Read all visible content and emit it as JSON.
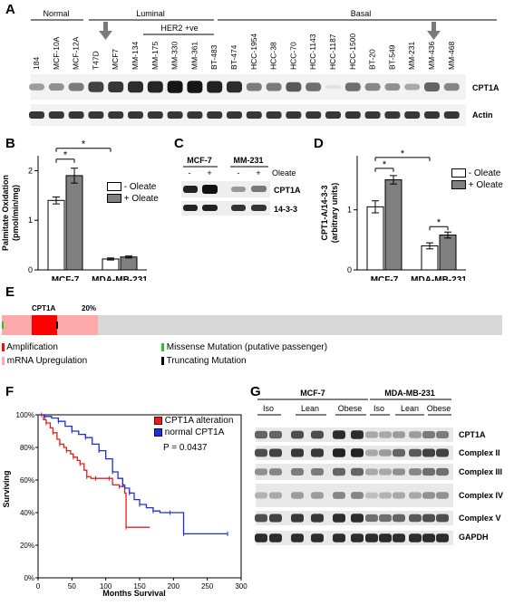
{
  "panelA": {
    "label": "A",
    "groups": [
      "Normal",
      "Luminal",
      "HER2 +ve",
      "Basal"
    ],
    "lanes": [
      "184",
      "MCF-10A",
      "MCF-12A",
      "T47D",
      "MCF7",
      "MM-134",
      "MM-175",
      "MM-330",
      "MM-361",
      "BT-483",
      "BT-474",
      "HCC-1954",
      "HCC-38",
      "HCC-70",
      "HCC-1143",
      "HCC-1187",
      "HCC-1500",
      "BT-20",
      "BT-549",
      "MM-231",
      "MM-436",
      "MM-468"
    ],
    "cpt1a_intensity": [
      0.35,
      0.4,
      0.5,
      0.75,
      0.8,
      0.85,
      0.88,
      0.95,
      0.95,
      0.9,
      0.85,
      0.5,
      0.5,
      0.65,
      0.55,
      0.05,
      0.55,
      0.45,
      0.4,
      0.3,
      0.6,
      0.45
    ],
    "blot_labels": [
      "CPT1A",
      "Actin"
    ]
  },
  "panelB": {
    "label": "B",
    "ylabel": "Palmitate Oxidation\n(pmol/min/mg)",
    "legend": [
      "- Oleate",
      "+ Oleate"
    ],
    "sig": "*",
    "chart_data": {
      "type": "bar",
      "categories": [
        "MCF-7",
        "MDA-MB-231"
      ],
      "series": [
        {
          "name": "- Oleate",
          "values": [
            1.4,
            0.22
          ],
          "errors": [
            0.07,
            0.02
          ],
          "color": "#ffffff"
        },
        {
          "name": "+ Oleate",
          "values": [
            1.9,
            0.26
          ],
          "errors": [
            0.15,
            0.02
          ],
          "color": "#808080"
        }
      ],
      "ylim": [
        0,
        2.3
      ],
      "yticks": [
        "0",
        "1",
        "2"
      ]
    }
  },
  "panelC": {
    "label": "C",
    "cells": [
      "MCF-7",
      "MM-231"
    ],
    "oleate_label": "Oleate",
    "oleate_marks": [
      "-",
      "+",
      "-",
      "+"
    ],
    "blot_labels": [
      "CPT1A",
      "14-3-3"
    ]
  },
  "panelD": {
    "label": "D",
    "ylabel": "CPT1-A/14-3-3\n(arbitrary units)",
    "legend": [
      "- Oleate",
      "+ Oleate"
    ],
    "sig": "*",
    "chart_data": {
      "type": "bar",
      "categories": [
        "MCF-7",
        "MDA-MB-231"
      ],
      "series": [
        {
          "name": "- Oleate",
          "values": [
            1.05,
            0.4
          ],
          "errors": [
            0.1,
            0.05
          ],
          "color": "#ffffff"
        },
        {
          "name": "+ Oleate",
          "values": [
            1.5,
            0.58
          ],
          "errors": [
            0.07,
            0.05
          ],
          "color": "#808080"
        }
      ],
      "ylim": [
        0,
        1.9
      ],
      "yticks": [
        "0",
        "1"
      ]
    }
  },
  "panelE": {
    "label": "E",
    "gene": "CPT1A",
    "percent": "20%",
    "legend": [
      "Amplification",
      "mRNA Upregulation",
      "Missense Mutation (putative passenger)",
      "Truncating Mutation"
    ],
    "colors": {
      "amplification": "#ff0000",
      "upregulation": "#ffaaaa",
      "missense": "#2fbf2f",
      "truncating": "#000000",
      "none": "#d8d8d8"
    },
    "altered_fraction": 0.2
  },
  "panelF": {
    "label": "F",
    "xlabel": "Months Survival",
    "ylabel": "Surviving",
    "legend": [
      "CPT1A alteration",
      "normal CPT1A"
    ],
    "pvalue": "P = 0.0437",
    "chart_data": {
      "type": "line",
      "xlim": [
        0,
        300
      ],
      "ylim": [
        0,
        100
      ],
      "xticks": [
        "0",
        "50",
        "100",
        "150",
        "200",
        "250",
        "300"
      ],
      "yticks": [
        "0%",
        "20%",
        "40%",
        "60%",
        "80%",
        "100%"
      ],
      "series": [
        {
          "name": "CPT1A alteration",
          "color": "#e02020",
          "points": [
            [
              0,
              100
            ],
            [
              5,
              100
            ],
            [
              8,
              97
            ],
            [
              12,
              95
            ],
            [
              18,
              92
            ],
            [
              22,
              89
            ],
            [
              28,
              85
            ],
            [
              32,
              82
            ],
            [
              38,
              80
            ],
            [
              42,
              78
            ],
            [
              48,
              76
            ],
            [
              52,
              74
            ],
            [
              58,
              72
            ],
            [
              62,
              70
            ],
            [
              68,
              66
            ],
            [
              72,
              62
            ],
            [
              78,
              61
            ],
            [
              85,
              61
            ],
            [
              95,
              61
            ],
            [
              105,
              61
            ],
            [
              110,
              57
            ],
            [
              120,
              56
            ],
            [
              128,
              52
            ],
            [
              130,
              31
            ],
            [
              165,
              31
            ]
          ]
        },
        {
          "name": "normal CPT1A",
          "color": "#2030d0",
          "points": [
            [
              0,
              100
            ],
            [
              10,
              99
            ],
            [
              20,
              98
            ],
            [
              30,
              96
            ],
            [
              40,
              93
            ],
            [
              50,
              90
            ],
            [
              60,
              88
            ],
            [
              70,
              86
            ],
            [
              80,
              82
            ],
            [
              90,
              78
            ],
            [
              100,
              73
            ],
            [
              110,
              65
            ],
            [
              118,
              61
            ],
            [
              125,
              57
            ],
            [
              128,
              55
            ],
            [
              135,
              52
            ],
            [
              142,
              48
            ],
            [
              150,
              45
            ],
            [
              160,
              43
            ],
            [
              170,
              41
            ],
            [
              180,
              40
            ],
            [
              195,
              40
            ],
            [
              210,
              40
            ],
            [
              215,
              27
            ],
            [
              250,
              27
            ],
            [
              280,
              27
            ]
          ]
        }
      ]
    }
  },
  "panelG": {
    "label": "G",
    "cells": [
      "MCF-7",
      "MDA-MB-231"
    ],
    "conditions": [
      "Iso",
      "Lean",
      "Obese"
    ],
    "blot_labels": [
      "CPT1A",
      "Complex II",
      "Complex III",
      "Complex IV",
      "Complex V",
      "GAPDH"
    ]
  }
}
